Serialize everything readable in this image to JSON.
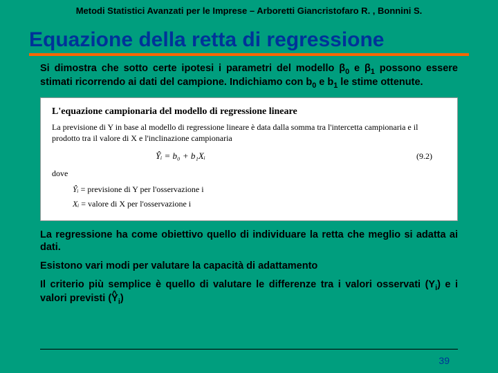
{
  "colors": {
    "background": "#009e7e",
    "title": "#003399",
    "underline": "#ff6600",
    "text": "#000000",
    "figure_bg": "#ffffff",
    "figure_border": "#999999"
  },
  "header": {
    "text": "Metodi Statistici Avanzati per le Imprese – Arboretti Giancristofaro R. , Bonnini S."
  },
  "title": "Equazione della retta di regressione",
  "intro": {
    "line1a": "Si dimostra che sotto certe ipotesi i parametri del modello ",
    "b0": "β",
    "b0sub": "0",
    "mid": " e ",
    "b1": "β",
    "b1sub": "1",
    "line2": " possono essere stimati ricorrendo ai dati del campione. Indichiamo con b",
    "bb0sub": "0",
    "and": " e b",
    "bb1sub": "1",
    "line3": " le stime ottenute."
  },
  "figure": {
    "title": "L'equazione campionaria del modello di regressione lineare",
    "desc": "La previsione di Y in base al modello di regressione lineare è data dalla somma tra l'intercetta campionaria e il prodotto tra il valore di X e l'inclinazione campionaria",
    "eq_lhs": "Ŷᵢ = b₀ + b₁Xᵢ",
    "eq_num": "(9.2)",
    "dove": "dove",
    "def1_lhs": "Ŷᵢ",
    "def1_rhs": " = previsione di Y per l'osservazione i",
    "def2_lhs": "Xᵢ",
    "def2_rhs": " = valore di X per l'osservazione i"
  },
  "p2": "La regressione ha come obiettivo quello di individuare la retta che meglio si adatta ai dati.",
  "p3": "Esistono vari modi per valutare la capacità di adattamento",
  "p4": {
    "a": "Il criterio più semplice è quello di valutare le differenze tra i valori osservati (Y",
    "sub1": "i",
    "b": ") e i valori previsti (",
    "yhat": "Y",
    "sub2": "i",
    "c": ")"
  },
  "page_number": "39"
}
